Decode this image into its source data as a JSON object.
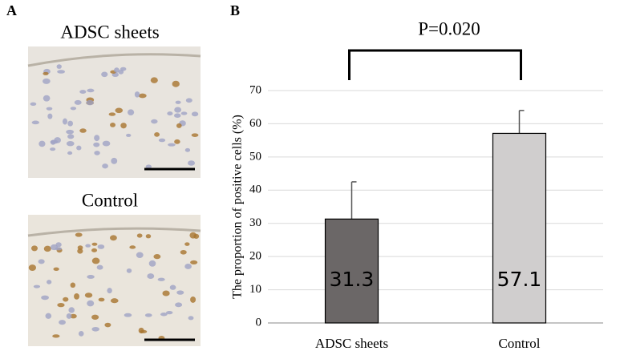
{
  "panel_a": {
    "label": "A",
    "images": [
      {
        "title": "ADSC sheets"
      },
      {
        "title": "Control"
      }
    ]
  },
  "chart_data": {
    "type": "bar",
    "panel_label": "B",
    "annotation": "P=0.020",
    "ylabel": "The proportion of positive cells (%)",
    "categories": [
      "ADSC sheets",
      "Control"
    ],
    "values": [
      31.3,
      57.1
    ],
    "errors": [
      11.2,
      6.9
    ],
    "colors": [
      "#6b6767",
      "#d0cece"
    ],
    "ylim": [
      0,
      70
    ],
    "yticks": [
      0,
      10,
      20,
      30,
      40,
      50,
      60,
      70
    ],
    "grid": true
  }
}
